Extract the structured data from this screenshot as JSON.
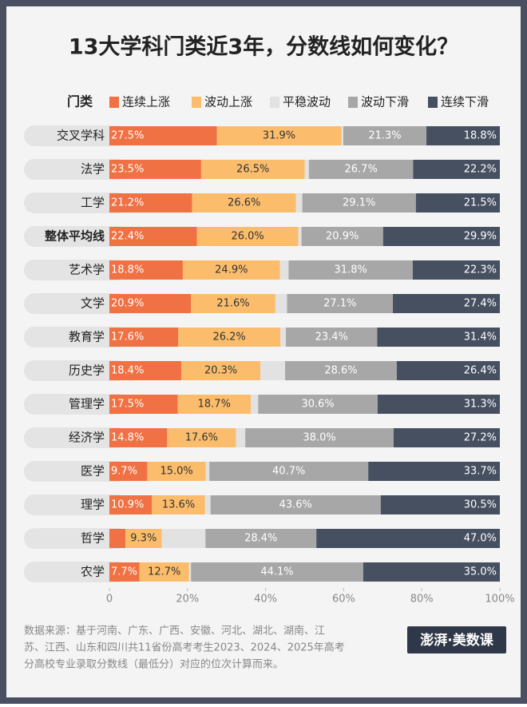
{
  "chart_data": {
    "type": "stacked-bar-horizontal",
    "title": "13大学科门类近3年，分数线如何变化？",
    "legend_title": "门类",
    "categories": [
      "交叉学科",
      "法学",
      "工学",
      "整体平均线",
      "艺术学",
      "文学",
      "教育学",
      "历史学",
      "管理学",
      "经济学",
      "医学",
      "理学",
      "哲学",
      "农学"
    ],
    "series": [
      {
        "name": "连续上涨",
        "color": "#f07143",
        "values": [
          27.5,
          23.5,
          21.2,
          22.4,
          18.8,
          20.9,
          17.6,
          18.4,
          17.5,
          14.8,
          9.7,
          10.9,
          4.1,
          7.7
        ],
        "value_labels": [
          "27.5%",
          "23.5%",
          "21.2%",
          "22.4%",
          "18.8%",
          "20.9%",
          "17.6%",
          "18.4%",
          "17.5%",
          "14.8%",
          "9.7%",
          "10.9%",
          null,
          "7.7%"
        ]
      },
      {
        "name": "波动上涨",
        "color": "#fbbd6c",
        "values": [
          31.9,
          26.5,
          26.6,
          26.0,
          24.9,
          21.6,
          26.2,
          20.3,
          18.7,
          17.6,
          15.0,
          13.6,
          9.3,
          12.7
        ],
        "value_labels": [
          "31.9%",
          "26.5%",
          "26.6%",
          "26.0%",
          "24.9%",
          "21.6%",
          "26.2%",
          "20.3%",
          "18.7%",
          "17.6%",
          "15.0%",
          "13.6%",
          "9.3%",
          "12.7%"
        ]
      },
      {
        "name": "平稳波动",
        "color": "#e2e2e2",
        "values": [
          0.5,
          1.1,
          1.6,
          0.8,
          2.2,
          3.0,
          1.4,
          6.3,
          1.9,
          2.4,
          0.9,
          1.4,
          11.2,
          0.5
        ]
      },
      {
        "name": "波动下滑",
        "color": "#a7a7a7",
        "values": [
          21.3,
          26.7,
          29.1,
          20.9,
          31.8,
          27.1,
          23.4,
          28.6,
          30.6,
          38.0,
          40.7,
          43.6,
          28.4,
          44.1
        ],
        "value_labels": [
          "21.3%",
          "26.7%",
          "29.1%",
          "20.9%",
          "31.8%",
          "27.1%",
          "23.4%",
          "28.6%",
          "30.6%",
          "38.0%",
          "40.7%",
          "43.6%",
          "28.4%",
          "44.1%"
        ]
      },
      {
        "name": "连续下滑",
        "color": "#465061",
        "values": [
          18.8,
          22.2,
          21.5,
          29.9,
          22.3,
          27.4,
          31.4,
          26.4,
          31.3,
          27.2,
          33.7,
          30.5,
          47.0,
          35.0
        ],
        "value_labels": [
          "18.8%",
          "22.2%",
          "21.5%",
          "29.9%",
          "22.3%",
          "27.4%",
          "31.4%",
          "26.4%",
          "31.3%",
          "27.2%",
          "33.7%",
          "30.5%",
          "47.0%",
          "35.0%"
        ]
      }
    ],
    "xlim": [
      0,
      100
    ],
    "xticks": [
      0,
      {
        "value": 20,
        "label": "20%"
      },
      {
        "value": 40,
        "label": "40%"
      },
      {
        "value": 60,
        "label": "60%"
      },
      {
        "value": 80,
        "label": "80%"
      },
      {
        "value": 100,
        "label": "100%"
      }
    ],
    "source": [
      "数据来源：基于河南、广东、广西、安徽、河北、湖北、湖南、江",
      "苏、江西、山东和四川共11省份高考考生2023、2024、2025年高考",
      "分高校专业录取分数线（最低分）对应的位次计算而来。"
    ],
    "logo": "澎湃·美数课"
  }
}
